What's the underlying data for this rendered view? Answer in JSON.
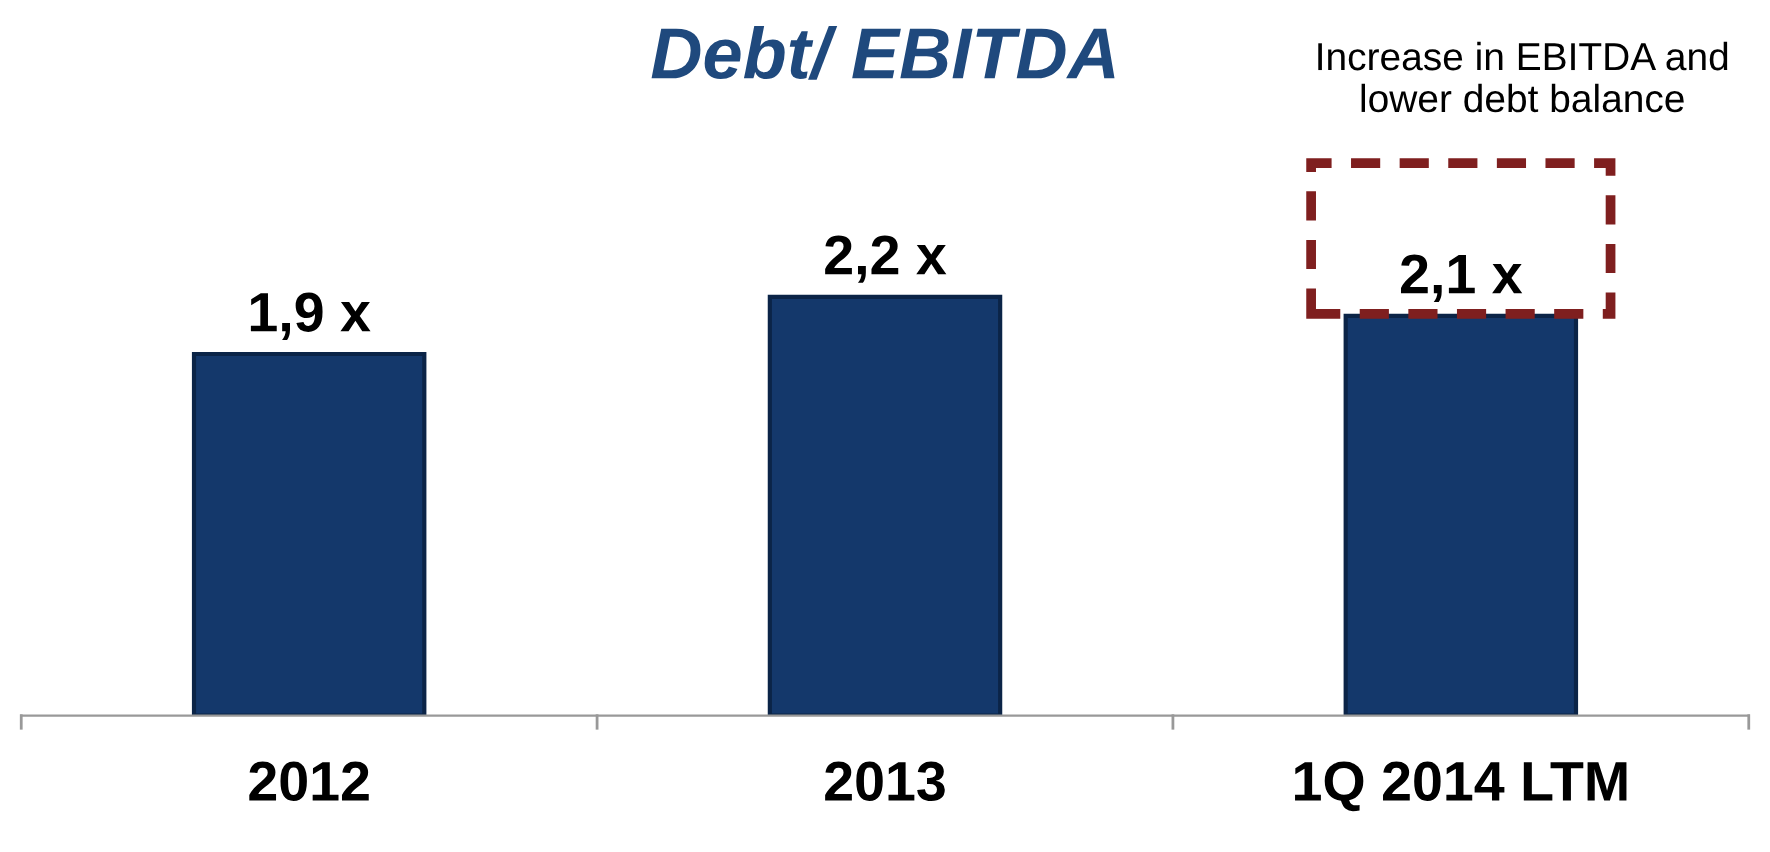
{
  "chart_data": {
    "type": "bar",
    "title": "Debt/ EBITDA",
    "categories": [
      "2012",
      "2013",
      "1Q 2014 LTM"
    ],
    "values": [
      1.9,
      2.2,
      2.1
    ],
    "color": "#14386b",
    "value_labels": [
      "1,9 x",
      "2,2 x",
      "2,1 x"
    ],
    "annotations": [
      "Increase in EBITDA and\nlower debt balance"
    ],
    "grid": false,
    "legend": false
  }
}
